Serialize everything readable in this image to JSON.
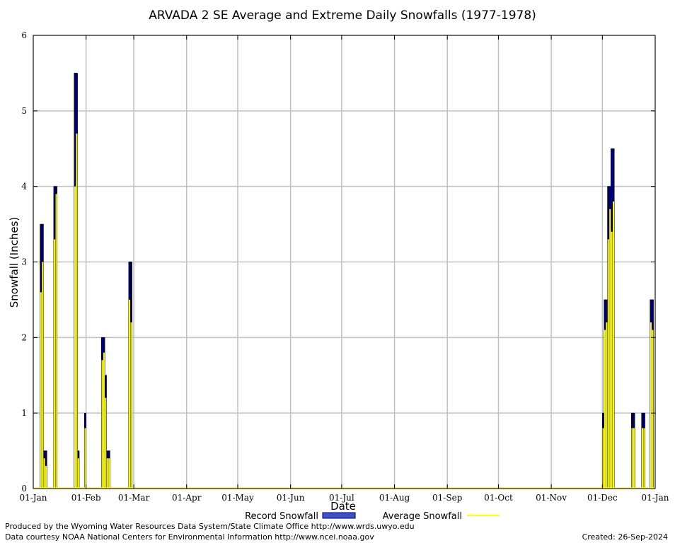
{
  "chart_data": {
    "type": "bar",
    "title": "ARVADA 2 SE Average and Extreme Daily Snowfalls (1977-1978)",
    "xlabel": "Date",
    "ylabel": "Snowfall (Inches)",
    "ylim": [
      0,
      6
    ],
    "yticks": [
      "0",
      "1",
      "2",
      "3",
      "4",
      "5",
      "6"
    ],
    "xticks": [
      "01-Jan",
      "01-Feb",
      "01-Mar",
      "01-Apr",
      "01-May",
      "01-Jun",
      "01-Jul",
      "01-Aug",
      "01-Sep",
      "01-Oct",
      "01-Nov",
      "01-Dec",
      "01-Jan"
    ],
    "grid": true,
    "legend_position": "bottom",
    "series": [
      {
        "name": "Record Snowfall",
        "color": "#000080",
        "points": [
          {
            "x": "Jan-05",
            "y": 3.5
          },
          {
            "x": "Jan-06",
            "y": 3.5
          },
          {
            "x": "Jan-07",
            "y": 0.5
          },
          {
            "x": "Jan-08",
            "y": 0.5
          },
          {
            "x": "Jan-13",
            "y": 4.0
          },
          {
            "x": "Jan-14",
            "y": 4.0
          },
          {
            "x": "Jan-25",
            "y": 5.5
          },
          {
            "x": "Jan-26",
            "y": 5.5
          },
          {
            "x": "Jan-27",
            "y": 0.5
          },
          {
            "x": "Jan-31",
            "y": 1.0
          },
          {
            "x": "Feb-10",
            "y": 2.0
          },
          {
            "x": "Feb-11",
            "y": 2.0
          },
          {
            "x": "Feb-12",
            "y": 1.5
          },
          {
            "x": "Feb-13",
            "y": 0.5
          },
          {
            "x": "Feb-14",
            "y": 0.5
          },
          {
            "x": "Feb-26",
            "y": 3.0
          },
          {
            "x": "Feb-27",
            "y": 3.0
          },
          {
            "x": "Dec-01",
            "y": 1.0
          },
          {
            "x": "Dec-02",
            "y": 2.5
          },
          {
            "x": "Dec-03",
            "y": 2.5
          },
          {
            "x": "Dec-04",
            "y": 4.0
          },
          {
            "x": "Dec-05",
            "y": 4.0
          },
          {
            "x": "Dec-06",
            "y": 4.5
          },
          {
            "x": "Dec-07",
            "y": 4.5
          },
          {
            "x": "Dec-18",
            "y": 1.0
          },
          {
            "x": "Dec-19",
            "y": 1.0
          },
          {
            "x": "Dec-24",
            "y": 1.0
          },
          {
            "x": "Dec-25",
            "y": 1.0
          },
          {
            "x": "Dec-29",
            "y": 2.5
          },
          {
            "x": "Dec-30",
            "y": 2.5
          }
        ]
      },
      {
        "name": "Average Snowfall",
        "color": "#ffff00",
        "points": [
          {
            "x": "Jan-05",
            "y": 2.6
          },
          {
            "x": "Jan-06",
            "y": 3.0
          },
          {
            "x": "Jan-07",
            "y": 0.4
          },
          {
            "x": "Jan-08",
            "y": 0.3
          },
          {
            "x": "Jan-13",
            "y": 3.3
          },
          {
            "x": "Jan-14",
            "y": 3.9
          },
          {
            "x": "Jan-25",
            "y": 4.0
          },
          {
            "x": "Jan-26",
            "y": 4.7
          },
          {
            "x": "Jan-27",
            "y": 0.4
          },
          {
            "x": "Jan-31",
            "y": 0.8
          },
          {
            "x": "Feb-10",
            "y": 1.7
          },
          {
            "x": "Feb-11",
            "y": 1.8
          },
          {
            "x": "Feb-12",
            "y": 1.2
          },
          {
            "x": "Feb-13",
            "y": 0.4
          },
          {
            "x": "Feb-14",
            "y": 0.4
          },
          {
            "x": "Feb-26",
            "y": 2.5
          },
          {
            "x": "Feb-27",
            "y": 2.2
          },
          {
            "x": "Dec-01",
            "y": 0.8
          },
          {
            "x": "Dec-02",
            "y": 2.1
          },
          {
            "x": "Dec-03",
            "y": 2.2
          },
          {
            "x": "Dec-04",
            "y": 3.3
          },
          {
            "x": "Dec-05",
            "y": 3.7
          },
          {
            "x": "Dec-06",
            "y": 3.4
          },
          {
            "x": "Dec-07",
            "y": 3.8
          },
          {
            "x": "Dec-18",
            "y": 0.8
          },
          {
            "x": "Dec-19",
            "y": 0.8
          },
          {
            "x": "Dec-24",
            "y": 0.8
          },
          {
            "x": "Dec-25",
            "y": 0.8
          },
          {
            "x": "Dec-29",
            "y": 2.2
          },
          {
            "x": "Dec-30",
            "y": 2.1
          }
        ]
      }
    ]
  },
  "footer": {
    "line1": "Produced by the Wyoming Water Resources Data System/State Climate Office http://www.wrds.uwyo.edu",
    "line2": "Data courtesy NOAA National Centers for Environmental Information http://www.ncei.noaa.gov",
    "created": "Created:  26-Sep-2024"
  }
}
